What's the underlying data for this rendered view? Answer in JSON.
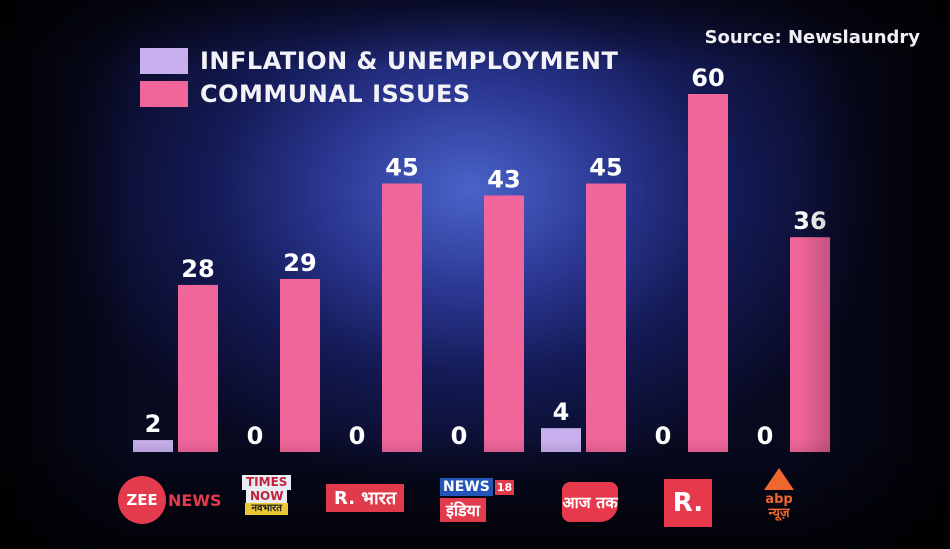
{
  "source": "Source: Newslaundry",
  "legend": [
    {
      "label": "INFLATION & UNEMPLOYMENT",
      "color": "#c8b0ee"
    },
    {
      "label": "COMMUNAL ISSUES",
      "color": "#f0659a"
    }
  ],
  "logos": {
    "zee": {
      "mark": "ZEE",
      "word": "NEWS"
    },
    "times": {
      "line1": "TIMES",
      "line2": "NOW",
      "line3": "नवभारत"
    },
    "rbharat": {
      "text": "R. भारत"
    },
    "news18": {
      "news": "NEWS",
      "num": "18",
      "india": "इंडिया"
    },
    "aajtak": {
      "text": "आज तक"
    },
    "republic": {
      "text": "R."
    },
    "abp": {
      "line1": "abp",
      "line2": "न्यूज़"
    }
  },
  "chart_data": {
    "type": "bar",
    "categories": [
      "Zee News",
      "Times Now Navbharat",
      "R. Bharat",
      "News18 India",
      "Aaj Tak",
      "Republic",
      "ABP News"
    ],
    "series": [
      {
        "name": "INFLATION & UNEMPLOYMENT",
        "color": "#c8b0ee",
        "values": [
          2,
          0,
          0,
          0,
          4,
          0,
          0
        ]
      },
      {
        "name": "COMMUNAL ISSUES",
        "color": "#f0659a",
        "values": [
          28,
          29,
          45,
          43,
          45,
          60,
          36
        ]
      }
    ],
    "ylim": [
      0,
      60
    ],
    "grid": false,
    "legend_position": "top-left"
  }
}
